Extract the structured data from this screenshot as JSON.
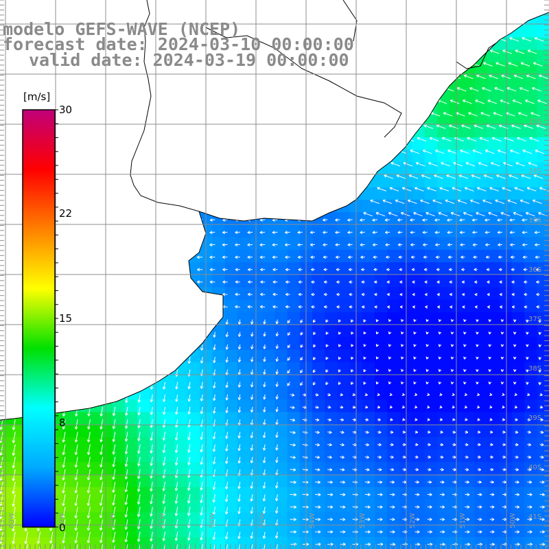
{
  "title": {
    "line1": "modelo GEFS-WAVE (NCEP)",
    "line2": "forecast date: 2024-03-10 00:00:00",
    "line3": "valid date: 2024-03-19 00:00:00"
  },
  "colorbar": {
    "unit": "[m/s]",
    "ticks": [
      "30",
      "22",
      "15",
      "8",
      "0"
    ],
    "colors": [
      "#0000ff",
      "#00aaff",
      "#00ffff",
      "#00e000",
      "#ffff00",
      "#ff8000",
      "#ff0000",
      "#c0007a"
    ]
  },
  "map": {
    "lat_labels": [
      "33S",
      "34S",
      "35S",
      "36S",
      "37S",
      "38S",
      "39S",
      "40S",
      "41S"
    ],
    "lon_labels": [
      "60W",
      "59W",
      "58W",
      "57W",
      "56W",
      "55W",
      "54W",
      "53W",
      "52W",
      "51W",
      "50W"
    ],
    "land_color": "#ffffff",
    "grid_color": "#8c8c8c",
    "arrow_color": "#ffffff"
  }
}
